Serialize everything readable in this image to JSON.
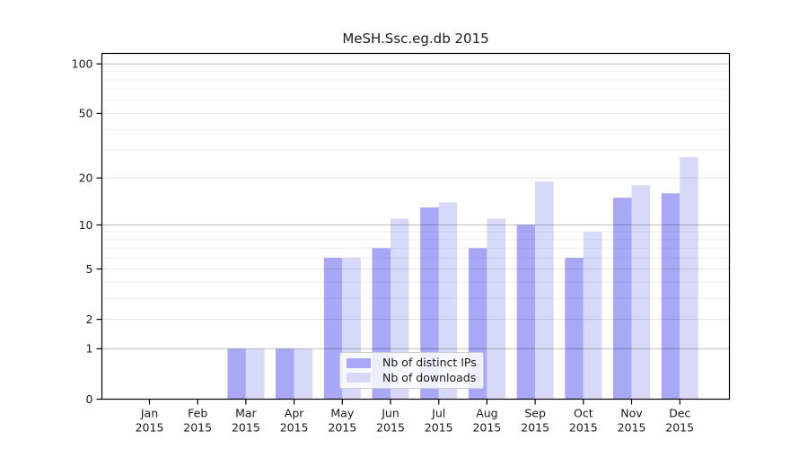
{
  "chart_data": {
    "type": "bar",
    "title": "MeSH.Ssc.eg.db 2015",
    "categories": [
      "Jan",
      "Feb",
      "Mar",
      "Apr",
      "May",
      "Jun",
      "Jul",
      "Aug",
      "Sep",
      "Oct",
      "Nov",
      "Dec"
    ],
    "year_label": "2015",
    "series": [
      {
        "name": "Nb of distinct IPs",
        "color": "#a8a8f6",
        "values": [
          0,
          0,
          1,
          1,
          6,
          7,
          13,
          7,
          10,
          6,
          15,
          16
        ]
      },
      {
        "name": "Nb of downloads",
        "color": "#d8d8f8",
        "values": [
          0,
          0,
          1,
          1,
          6,
          11,
          14,
          11,
          19,
          9,
          18,
          27
        ]
      }
    ],
    "yscale": "log1p",
    "yticks": [
      0,
      1,
      2,
      5,
      10,
      20,
      50,
      100
    ],
    "mid_gridlines": [
      2,
      5,
      20,
      50
    ],
    "major_gridlines": [
      1,
      10,
      100
    ],
    "minor_gridlines": [
      3,
      4,
      6,
      7,
      8,
      9,
      30,
      40,
      60,
      70,
      80,
      90
    ],
    "ylim": [
      0,
      115
    ],
    "grid": true,
    "legend_position": "inside-bottom-center",
    "axis_color": "#000000",
    "background": "#ffffff"
  }
}
